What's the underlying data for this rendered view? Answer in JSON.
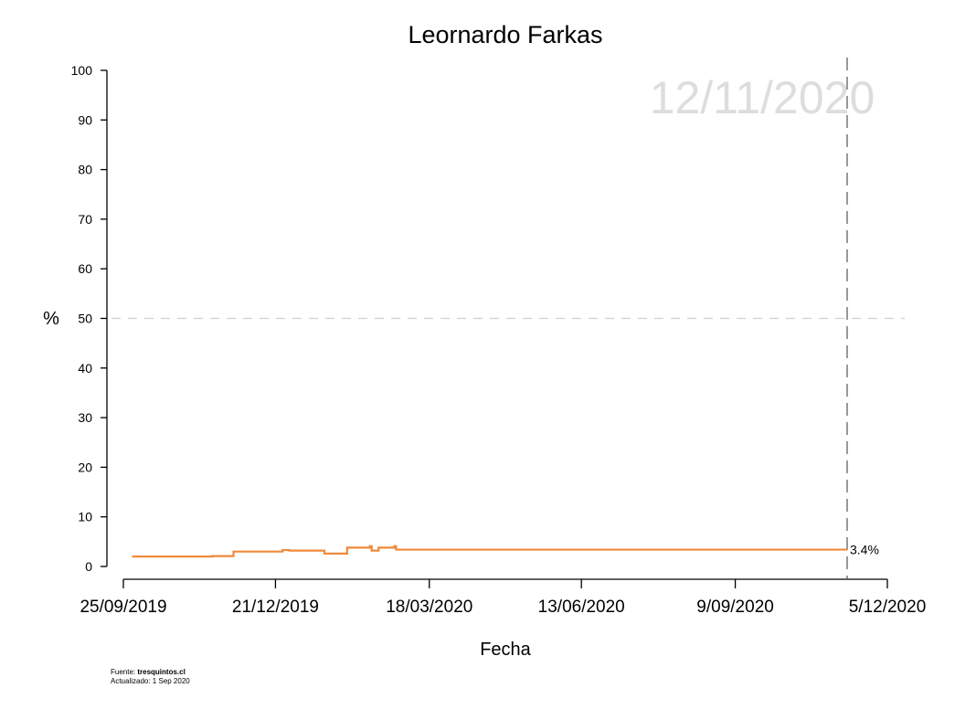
{
  "chart_data": {
    "type": "line",
    "title": "Leornardo Farkas",
    "xlabel": "Fecha",
    "ylabel": "%",
    "ylim": [
      0,
      100
    ],
    "yticks": [
      0,
      10,
      20,
      30,
      40,
      50,
      60,
      70,
      80,
      90,
      100
    ],
    "xlim": [
      "2019-09-25",
      "2020-12-05"
    ],
    "xticks": [
      {
        "date": "2019-09-25",
        "label": "25/09/2019"
      },
      {
        "date": "2019-12-21",
        "label": "21/12/2019"
      },
      {
        "date": "2020-03-18",
        "label": "18/03/2020"
      },
      {
        "date": "2020-06-13",
        "label": "13/06/2020"
      },
      {
        "date": "2020-09-09",
        "label": "9/09/2020"
      },
      {
        "date": "2020-12-05",
        "label": "5/12/2020"
      }
    ],
    "watermark_date": "12/11/2020",
    "vline_date": "2020-11-12",
    "hline_value": 50,
    "series": [
      {
        "color": "#ef8a3c",
        "step": true,
        "points": [
          {
            "x": "2019-09-30",
            "y": 2.0
          },
          {
            "x": "2019-11-15",
            "y": 2.1
          },
          {
            "x": "2019-11-27",
            "y": 3.0
          },
          {
            "x": "2019-12-25",
            "y": 3.3
          },
          {
            "x": "2019-12-29",
            "y": 3.2
          },
          {
            "x": "2020-01-18",
            "y": 2.6
          },
          {
            "x": "2020-01-31",
            "y": 3.8
          },
          {
            "x": "2020-02-13",
            "y": 4.1
          },
          {
            "x": "2020-02-14",
            "y": 3.2
          },
          {
            "x": "2020-02-18",
            "y": 3.8
          },
          {
            "x": "2020-02-27",
            "y": 4.1
          },
          {
            "x": "2020-02-28",
            "y": 3.4
          },
          {
            "x": "2020-11-12",
            "y": 3.4
          }
        ]
      }
    ],
    "end_label": "3.4%"
  },
  "footer": {
    "source_prefix": "Fuente: ",
    "source_name": "tresquintos.cl",
    "updated": "Actualizado: 1 Sep 2020"
  }
}
